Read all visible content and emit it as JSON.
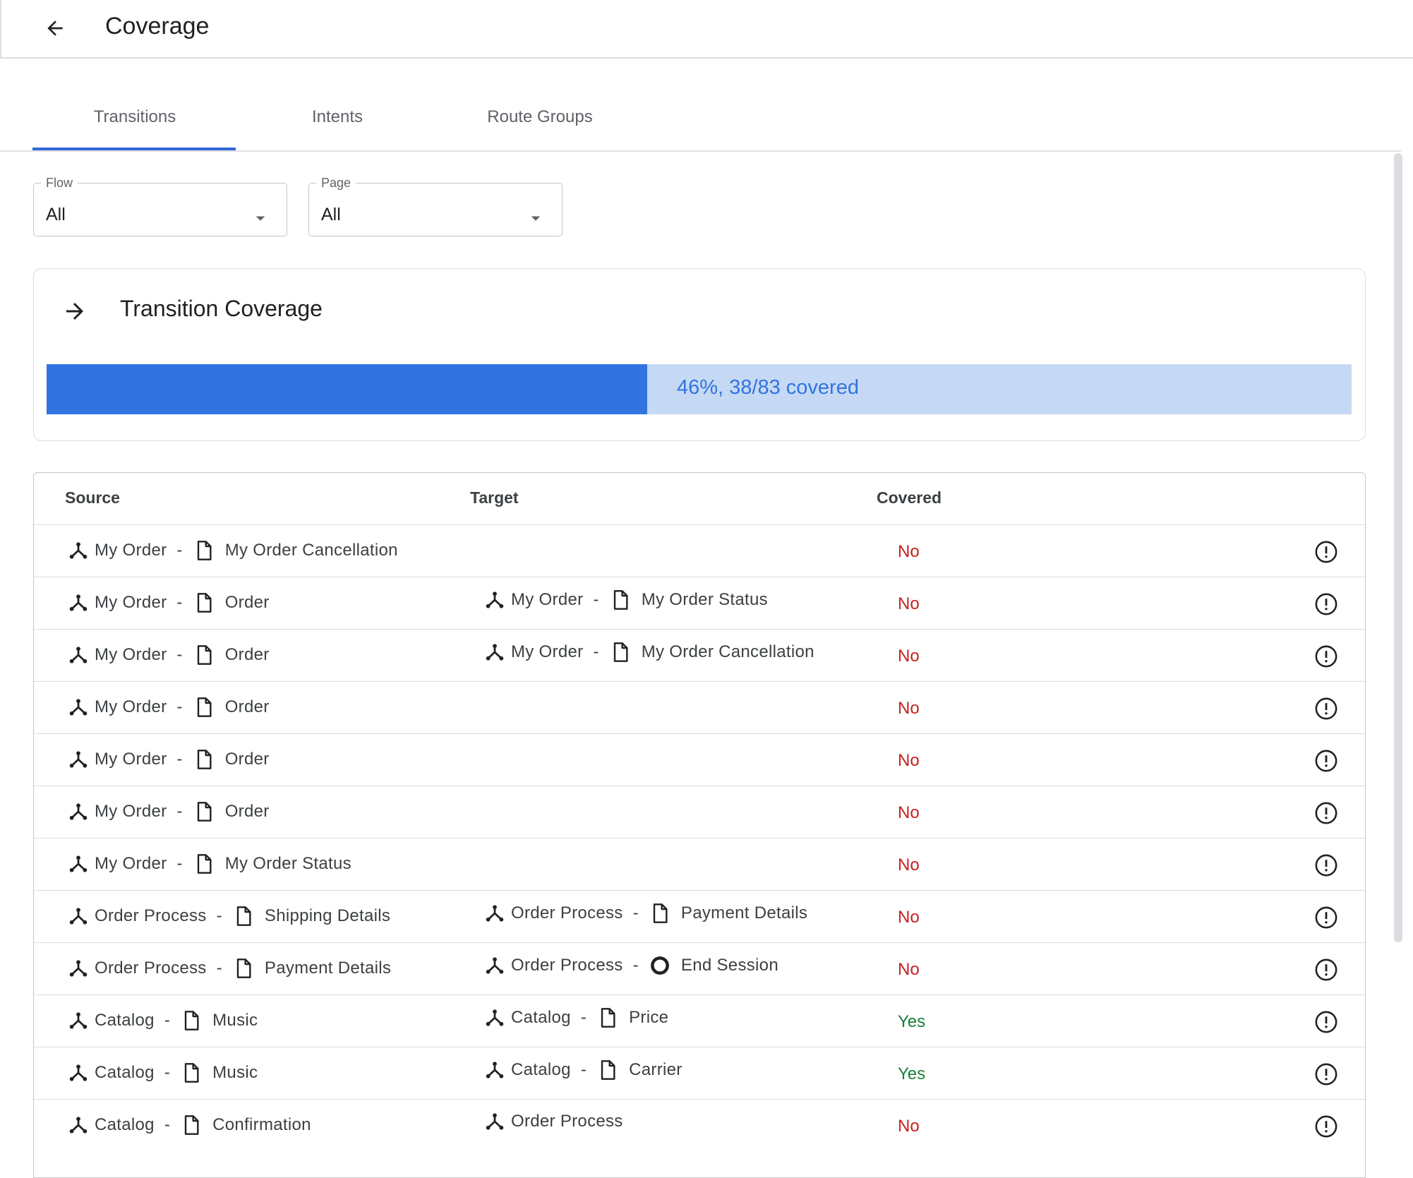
{
  "header": {
    "title": "Coverage"
  },
  "tabs": [
    "Transitions",
    "Intents",
    "Route Groups"
  ],
  "filters": [
    {
      "label": "Flow",
      "value": "All"
    },
    {
      "label": "Page",
      "value": "All"
    }
  ],
  "summary": {
    "title": "Transition Coverage",
    "coverage_percent": 46,
    "label": "46%, 38/83 covered"
  },
  "table": {
    "columns": [
      "Source",
      "Target",
      "Covered"
    ],
    "separator": "-",
    "rows": [
      {
        "source": {
          "flow": "My Order",
          "page": "My Order Cancellation"
        },
        "target": null,
        "covered": "No"
      },
      {
        "source": {
          "flow": "My Order",
          "page": "Order"
        },
        "target": {
          "flow": "My Order",
          "page": "My Order Status"
        },
        "covered": "No"
      },
      {
        "source": {
          "flow": "My Order",
          "page": "Order"
        },
        "target": {
          "flow": "My Order",
          "page": "My Order Cancellation"
        },
        "covered": "No"
      },
      {
        "source": {
          "flow": "My Order",
          "page": "Order"
        },
        "target": null,
        "covered": "No"
      },
      {
        "source": {
          "flow": "My Order",
          "page": "Order"
        },
        "target": null,
        "covered": "No"
      },
      {
        "source": {
          "flow": "My Order",
          "page": "Order"
        },
        "target": null,
        "covered": "No"
      },
      {
        "source": {
          "flow": "My Order",
          "page": "My Order Status"
        },
        "target": null,
        "covered": "No"
      },
      {
        "source": {
          "flow": "Order Process",
          "page": "Shipping Details"
        },
        "target": {
          "flow": "Order Process",
          "page": "Payment Details"
        },
        "covered": "No"
      },
      {
        "source": {
          "flow": "Order Process",
          "page": "Payment Details"
        },
        "target": {
          "flow": "Order Process",
          "page": "End Session",
          "end": true
        },
        "covered": "No"
      },
      {
        "source": {
          "flow": "Catalog",
          "page": "Music"
        },
        "target": {
          "flow": "Catalog",
          "page": "Price"
        },
        "covered": "Yes"
      },
      {
        "source": {
          "flow": "Catalog",
          "page": "Music"
        },
        "target": {
          "flow": "Catalog",
          "page": "Carrier"
        },
        "covered": "Yes"
      },
      {
        "source": {
          "flow": "Catalog",
          "page": "Confirmation"
        },
        "target": {
          "flow": "Order Process"
        },
        "covered": "No"
      }
    ]
  }
}
